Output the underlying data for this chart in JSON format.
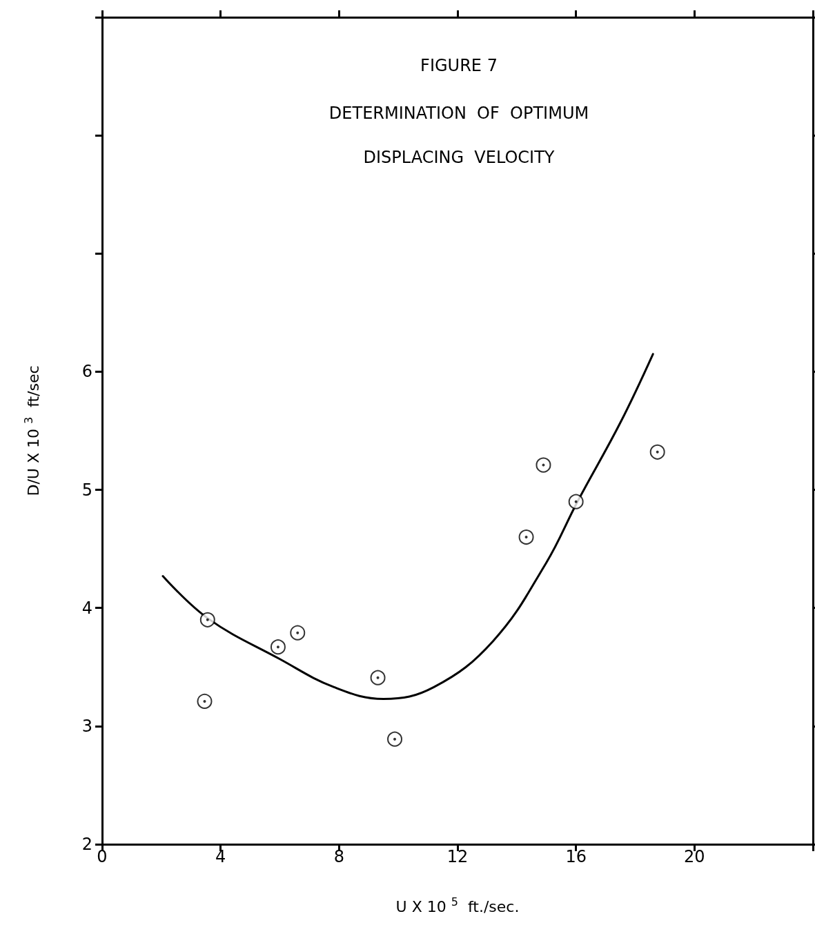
{
  "chart_data": {
    "type": "scatter",
    "title": "FIGURE 7",
    "subtitle": "DETERMINATION  OF  OPTIMUM\nDISPLACING  VELOCITY",
    "xlabel": "U X 10 $^{5}$  ft./sec.",
    "ylabel": "D/U X 10 $^{3}$  ft/sec",
    "series": [
      {
        "type": "scatter",
        "color": "#000000",
        "marker": "circle",
        "x": [
          3.46,
          3.56,
          5.94,
          6.6,
          9.31,
          9.88,
          14.32,
          14.9,
          16.0,
          18.75
        ],
        "values": [
          3.21,
          3.9,
          3.67,
          3.79,
          3.41,
          2.89,
          4.6,
          5.21,
          4.9,
          5.32
        ]
      },
      {
        "type": "line",
        "color": "#000000",
        "marker": "none",
        "line_style": "solid",
        "x": [
          2.05,
          3.58,
          5.98,
          7.83,
          9.5,
          11.2,
          13.2,
          14.99,
          16.05,
          17.5,
          18.6
        ],
        "values": [
          4.27,
          3.91,
          3.57,
          3.33,
          3.23,
          3.33,
          3.72,
          4.38,
          4.9,
          5.57,
          6.15
        ]
      }
    ],
    "xlim": [
      0,
      24
    ],
    "xticks": [
      0,
      4,
      8,
      12,
      16,
      20
    ],
    "ylim": [
      2,
      9
    ],
    "yticks": [
      2,
      3,
      4,
      5,
      6,
      {
        "value": 7,
        "label": null
      },
      {
        "value": 8,
        "label": null
      }
    ],
    "grid": false
  }
}
